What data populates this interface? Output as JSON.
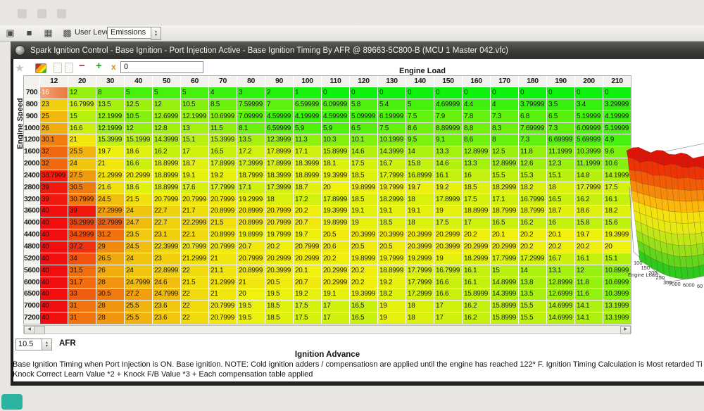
{
  "menubar": {
    "user_level_label": "User Level:",
    "user_level_value": "Emissions"
  },
  "window": {
    "title": "Spark Ignition Control - Base Ignition - Port Injection Active - Base Ignition Timing By AFR @ 89663-5C800-B (MCU 1 Master 042.vfc)"
  },
  "table_toolbar": {
    "cell_value_input": "0"
  },
  "chart_data": {
    "type": "heatmap",
    "title": "Base Ignition Timing By AFR",
    "xlabel": "Engine Load",
    "ylabel": "Engine Speed",
    "value_caption": "Ignition Advance",
    "columns": [
      "12",
      "20",
      "30",
      "40",
      "50",
      "60",
      "70",
      "80",
      "90",
      "100",
      "110",
      "120",
      "130",
      "140",
      "150",
      "160",
      "170",
      "180",
      "190",
      "200",
      "210"
    ],
    "rows": [
      "700",
      "800",
      "900",
      "1000",
      "1200",
      "1600",
      "2000",
      "2400",
      "2800",
      "3200",
      "3600",
      "4000",
      "4400",
      "4800",
      "5200",
      "5600",
      "6000",
      "6500",
      "7000",
      "7200"
    ],
    "values": [
      [
        "16",
        "12",
        "8",
        "5",
        "5",
        "5",
        "4",
        "3",
        "2",
        "1",
        "0",
        "0",
        "0",
        "0",
        "0",
        "0",
        "0",
        "0",
        "0",
        "0",
        "0"
      ],
      [
        "23",
        "16.7999",
        "13.5",
        "12.5",
        "12",
        "10.5",
        "8.5",
        "7.59999",
        "7",
        "6.59999",
        "6.09999",
        "5.8",
        "5.4",
        "5",
        "4.69999",
        "4.4",
        "4",
        "3.79999",
        "3.5",
        "3.4",
        "3.29999"
      ],
      [
        "25",
        "15",
        "12.1999",
        "10.5",
        "12.6999",
        "12.1999",
        "10.6999",
        "7.09999",
        "4.59999",
        "4.19999",
        "4.59999",
        "5.09999",
        "6.19999",
        "7.5",
        "7.9",
        "7.8",
        "7.3",
        "6.8",
        "6.5",
        "5.19999",
        "4.19999"
      ],
      [
        "26",
        "16.6",
        "12.1999",
        "12",
        "12.8",
        "13",
        "11.5",
        "8.1",
        "6.59999",
        "5.9",
        "5.9",
        "6.5",
        "7.5",
        "8.6",
        "8.89999",
        "8.8",
        "8.3",
        "7.69999",
        "7.3",
        "6.09999",
        "5.19999"
      ],
      [
        "30.1",
        "21",
        "15.3999",
        "15.1999",
        "14.3999",
        "15.1",
        "15.3999",
        "13.5",
        "12.3999",
        "11.3",
        "10.3",
        "10.1",
        "10.1999",
        "9.5",
        "9.1",
        "8.6",
        "8",
        "7.3",
        "6.69999",
        "5.69999",
        "4.9"
      ],
      [
        "32",
        "25.5",
        "19.7",
        "18.6",
        "16.2",
        "17",
        "16.5",
        "17.2",
        "17.8999",
        "17.1",
        "15.8999",
        "14.6",
        "14.3999",
        "14",
        "13.3",
        "12.8999",
        "12.5",
        "11.8",
        "11.1999",
        "10.3999",
        "9.6"
      ],
      [
        "32",
        "24",
        "21",
        "16.6",
        "18.8999",
        "18.7",
        "17.8999",
        "17.3999",
        "17.8999",
        "18.3999",
        "18.1",
        "17.5",
        "16.7",
        "15.8",
        "14.6",
        "13.3",
        "12.8999",
        "12.6",
        "12.3",
        "11.1999",
        "10.6"
      ],
      [
        "38.7999",
        "27.5",
        "21.2999",
        "20.2999",
        "18.8999",
        "19.1",
        "19.2",
        "18.7999",
        "18.3999",
        "18.8999",
        "19.3999",
        "18.5",
        "17.7999",
        "16.8999",
        "16.1",
        "16",
        "15.5",
        "15.3",
        "15.1",
        "14.8",
        "14.1999"
      ],
      [
        "39",
        "30.5",
        "21.6",
        "18.6",
        "18.8999",
        "17.6",
        "17.7999",
        "17.1",
        "17.3999",
        "18.7",
        "20",
        "19.8999",
        "19.7999",
        "19.7",
        "19.2",
        "18.5",
        "18.2999",
        "18.2",
        "18",
        "17.7999",
        "17.5"
      ],
      [
        "39",
        "30.7999",
        "24.5",
        "21.5",
        "20.7999",
        "20.7999",
        "20.7999",
        "19.2999",
        "18",
        "17.2",
        "17.8999",
        "18.5",
        "18.2999",
        "18",
        "17.8999",
        "17.5",
        "17.1",
        "16.7999",
        "16.5",
        "16.2",
        "16.1"
      ],
      [
        "40",
        "39",
        "27.2999",
        "24",
        "22.7",
        "21.7",
        "20.8999",
        "20.8999",
        "20.7999",
        "20.2",
        "19.3999",
        "19.1",
        "19.1",
        "19.1",
        "19",
        "18.8999",
        "18.7999",
        "18.7999",
        "18.7",
        "18.6",
        "18.2"
      ],
      [
        "40",
        "35.2999",
        "32.7999",
        "24.7",
        "22.7",
        "22.2999",
        "21.5",
        "20.8999",
        "20.7999",
        "20.7",
        "19.8999",
        "19",
        "18.5",
        "18",
        "17.5",
        "17",
        "16.5",
        "16.2",
        "16",
        "15.8",
        "15.6"
      ],
      [
        "40",
        "34.2999",
        "31.2",
        "23.5",
        "23.1",
        "22.1",
        "20.8999",
        "19.8999",
        "19.7999",
        "19.7",
        "20.5",
        "20.3999",
        "20.3999",
        "20.3999",
        "20.2999",
        "20.2",
        "20.1",
        "20.2",
        "20.1",
        "19.7",
        "19.3999"
      ],
      [
        "40",
        "37.2",
        "29",
        "24.5",
        "22.3999",
        "20.7999",
        "20.7999",
        "20.7",
        "20.2",
        "20.7999",
        "20.6",
        "20.5",
        "20.5",
        "20.3999",
        "20.3999",
        "20.2999",
        "20.2999",
        "20.2",
        "20.2",
        "20.2",
        "20"
      ],
      [
        "40",
        "34",
        "26.5",
        "24",
        "23",
        "21.2999",
        "21",
        "20.7999",
        "20.2999",
        "20.2999",
        "20.2",
        "19.8999",
        "19.7999",
        "19.2999",
        "19",
        "18.2999",
        "17.7999",
        "17.2999",
        "16.7",
        "16.1",
        "15.1"
      ],
      [
        "40",
        "31.5",
        "26",
        "24",
        "22.8999",
        "22",
        "21.1",
        "20.8999",
        "20.3999",
        "20.1",
        "20.2999",
        "20.2",
        "18.8999",
        "17.7999",
        "16.7999",
        "16.1",
        "15",
        "14",
        "13.1",
        "12",
        "10.8999"
      ],
      [
        "40",
        "31.7",
        "28",
        "24.7999",
        "24.6",
        "21.5",
        "21.2999",
        "21",
        "20.5",
        "20.7",
        "20.2999",
        "20.2",
        "19.2",
        "17.7999",
        "16.6",
        "16.1",
        "14.8999",
        "13.8",
        "12.8999",
        "11.8",
        "10.6999"
      ],
      [
        "40",
        "33",
        "30.5",
        "27.2",
        "24.7999",
        "22",
        "21",
        "20",
        "19.5",
        "19.2",
        "19.1",
        "19.3999",
        "18.2",
        "17.2999",
        "16.6",
        "15.8999",
        "14.3999",
        "13.5",
        "12.6999",
        "11.6",
        "10.3999"
      ],
      [
        "40",
        "31",
        "28",
        "25.5",
        "23.6",
        "22",
        "20.7999",
        "19.5",
        "18.5",
        "17.5",
        "17",
        "16.5",
        "19",
        "18",
        "17",
        "16.2",
        "15.8999",
        "15.5",
        "14.6999",
        "14.1",
        "13.1999"
      ],
      [
        "40",
        "31",
        "28",
        "25.5",
        "23.6",
        "22",
        "20.7999",
        "19.5",
        "18.5",
        "17.5",
        "17",
        "16.5",
        "19",
        "18",
        "17",
        "16.2",
        "15.8999",
        "15.5",
        "14.6999",
        "14.1",
        "13.1999"
      ]
    ],
    "selected": {
      "row_index": 0,
      "col_index": 0,
      "value": "16"
    },
    "color_scale": {
      "low": "#17dd17",
      "mid": "#f0ea10",
      "high": "#ee1407",
      "min": 0,
      "mid_value": 20,
      "max": 40
    }
  },
  "footer": {
    "afr_value": "10.5",
    "afr_label": "AFR",
    "axis_caption": "Ignition Advance",
    "status_line1": "Base Ignition Timing when Port Injection is ON. Base ignition. NOTE: Cold ignition adders / compensatiosn are applied until the engine has reached 122* F. Ignition Timing Calculation is Most retarded Timing va",
    "status_line2": "Knock Correct Learn Value *2 + Knock F/B Value *3 + Each compensation table applied"
  },
  "surface_plot": {
    "x_label": "Engine Load",
    "x_ticks": [
      "100",
      "150",
      "200",
      "250",
      "300"
    ],
    "speed_ticks": [
      "7000",
      "6000",
      "60"
    ],
    "band_colors": [
      "#dd1407",
      "#ee3307",
      "#f25c07",
      "#f68a0a",
      "#fcb70c",
      "#f4e20e",
      "#e6ea12",
      "#c3e716",
      "#97e01a",
      "#62d51c",
      "#2ecb1e"
    ]
  }
}
